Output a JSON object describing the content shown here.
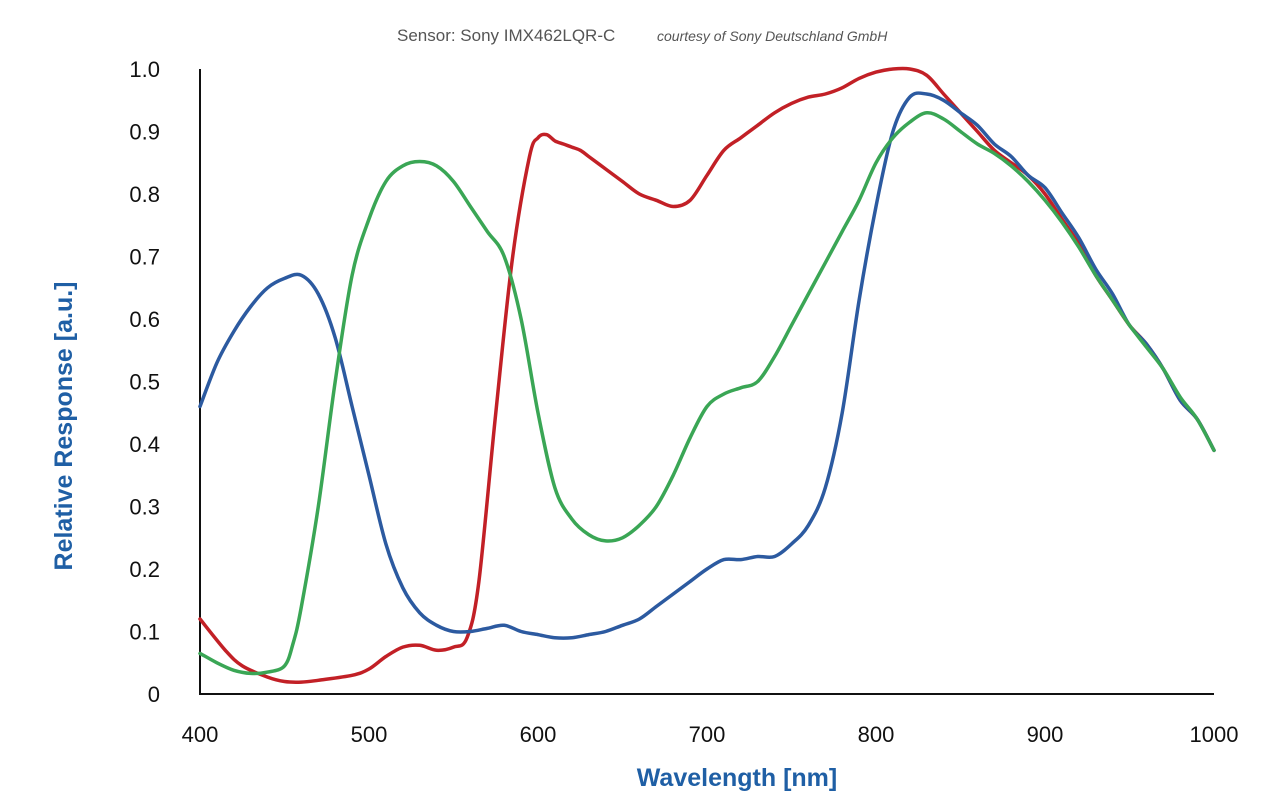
{
  "chart_data": {
    "type": "line",
    "title": "Sensor: Sony IMX462LQR-C",
    "subtitle": "courtesy of Sony Deutschland GmbH",
    "xlabel": "Wavelength [nm]",
    "ylabel": "Relative Response [a.u.]",
    "xlim": [
      400,
      1000
    ],
    "ylim": [
      0,
      1.0
    ],
    "x_ticks": [
      "400",
      "500",
      "600",
      "700",
      "800",
      "900",
      "1000"
    ],
    "y_ticks": [
      "0",
      "0.1",
      "0.2",
      "0.3",
      "0.4",
      "0.5",
      "0.6",
      "0.7",
      "0.8",
      "0.9",
      "1.0"
    ],
    "grid": false,
    "legend": "none",
    "axis_title_color": "#1f5fa5",
    "series": [
      {
        "color": "#c22026",
        "x": [
          400,
          415,
          425,
          440,
          450,
          460,
          470,
          490,
          500,
          510,
          520,
          530,
          540,
          550,
          558,
          565,
          575,
          585,
          595,
          600,
          605,
          610,
          615,
          620,
          625,
          630,
          640,
          650,
          660,
          670,
          680,
          690,
          700,
          710,
          720,
          730,
          740,
          750,
          760,
          770,
          780,
          790,
          800,
          810,
          820,
          830,
          840,
          850,
          860,
          870,
          880,
          890,
          900,
          910,
          920,
          930,
          940,
          950,
          960,
          970,
          980,
          990,
          1000
        ],
        "y": [
          0.12,
          0.07,
          0.045,
          0.027,
          0.02,
          0.019,
          0.022,
          0.03,
          0.04,
          0.06,
          0.075,
          0.078,
          0.07,
          0.075,
          0.09,
          0.18,
          0.45,
          0.7,
          0.86,
          0.89,
          0.895,
          0.885,
          0.88,
          0.875,
          0.87,
          0.86,
          0.84,
          0.82,
          0.8,
          0.79,
          0.78,
          0.79,
          0.83,
          0.87,
          0.89,
          0.91,
          0.93,
          0.945,
          0.955,
          0.96,
          0.97,
          0.985,
          0.995,
          1.0,
          1.0,
          0.99,
          0.96,
          0.93,
          0.9,
          0.87,
          0.85,
          0.83,
          0.8,
          0.76,
          0.72,
          0.67,
          0.63,
          0.59,
          0.56,
          0.52,
          0.47,
          0.44,
          0.39
        ]
      },
      {
        "color": "#2c5aa0",
        "x": [
          400,
          410,
          420,
          430,
          440,
          450,
          460,
          470,
          480,
          490,
          500,
          510,
          520,
          530,
          540,
          550,
          560,
          570,
          580,
          590,
          600,
          610,
          620,
          630,
          640,
          650,
          660,
          670,
          680,
          690,
          700,
          710,
          720,
          730,
          740,
          750,
          760,
          770,
          780,
          790,
          800,
          810,
          820,
          830,
          840,
          850,
          860,
          870,
          880,
          890,
          900,
          910,
          920,
          930,
          940,
          950,
          960,
          970,
          980,
          990,
          1000
        ],
        "y": [
          0.46,
          0.53,
          0.58,
          0.62,
          0.65,
          0.665,
          0.67,
          0.64,
          0.57,
          0.46,
          0.35,
          0.24,
          0.17,
          0.13,
          0.11,
          0.1,
          0.1,
          0.105,
          0.11,
          0.1,
          0.095,
          0.09,
          0.09,
          0.095,
          0.1,
          0.11,
          0.12,
          0.14,
          0.16,
          0.18,
          0.2,
          0.215,
          0.215,
          0.22,
          0.22,
          0.24,
          0.27,
          0.33,
          0.45,
          0.63,
          0.78,
          0.9,
          0.955,
          0.96,
          0.95,
          0.93,
          0.91,
          0.88,
          0.86,
          0.83,
          0.81,
          0.77,
          0.73,
          0.68,
          0.64,
          0.59,
          0.56,
          0.52,
          0.47,
          0.44,
          0.39
        ]
      },
      {
        "color": "#3aa655",
        "x": [
          400,
          410,
          420,
          430,
          440,
          450,
          455,
          460,
          470,
          480,
          490,
          500,
          510,
          520,
          530,
          540,
          550,
          560,
          570,
          580,
          590,
          600,
          610,
          620,
          630,
          640,
          650,
          660,
          670,
          680,
          690,
          700,
          710,
          720,
          730,
          740,
          750,
          760,
          770,
          780,
          790,
          800,
          810,
          820,
          830,
          840,
          850,
          860,
          870,
          880,
          890,
          900,
          910,
          920,
          930,
          940,
          950,
          960,
          970,
          980,
          990,
          1000
        ],
        "y": [
          0.065,
          0.05,
          0.038,
          0.033,
          0.035,
          0.045,
          0.08,
          0.14,
          0.3,
          0.5,
          0.67,
          0.76,
          0.82,
          0.845,
          0.852,
          0.845,
          0.82,
          0.78,
          0.74,
          0.7,
          0.6,
          0.45,
          0.33,
          0.28,
          0.255,
          0.245,
          0.25,
          0.27,
          0.3,
          0.35,
          0.41,
          0.46,
          0.48,
          0.49,
          0.5,
          0.54,
          0.59,
          0.64,
          0.69,
          0.74,
          0.79,
          0.85,
          0.89,
          0.915,
          0.93,
          0.92,
          0.9,
          0.88,
          0.865,
          0.845,
          0.82,
          0.79,
          0.755,
          0.715,
          0.67,
          0.63,
          0.59,
          0.555,
          0.52,
          0.475,
          0.44,
          0.39
        ]
      }
    ]
  }
}
